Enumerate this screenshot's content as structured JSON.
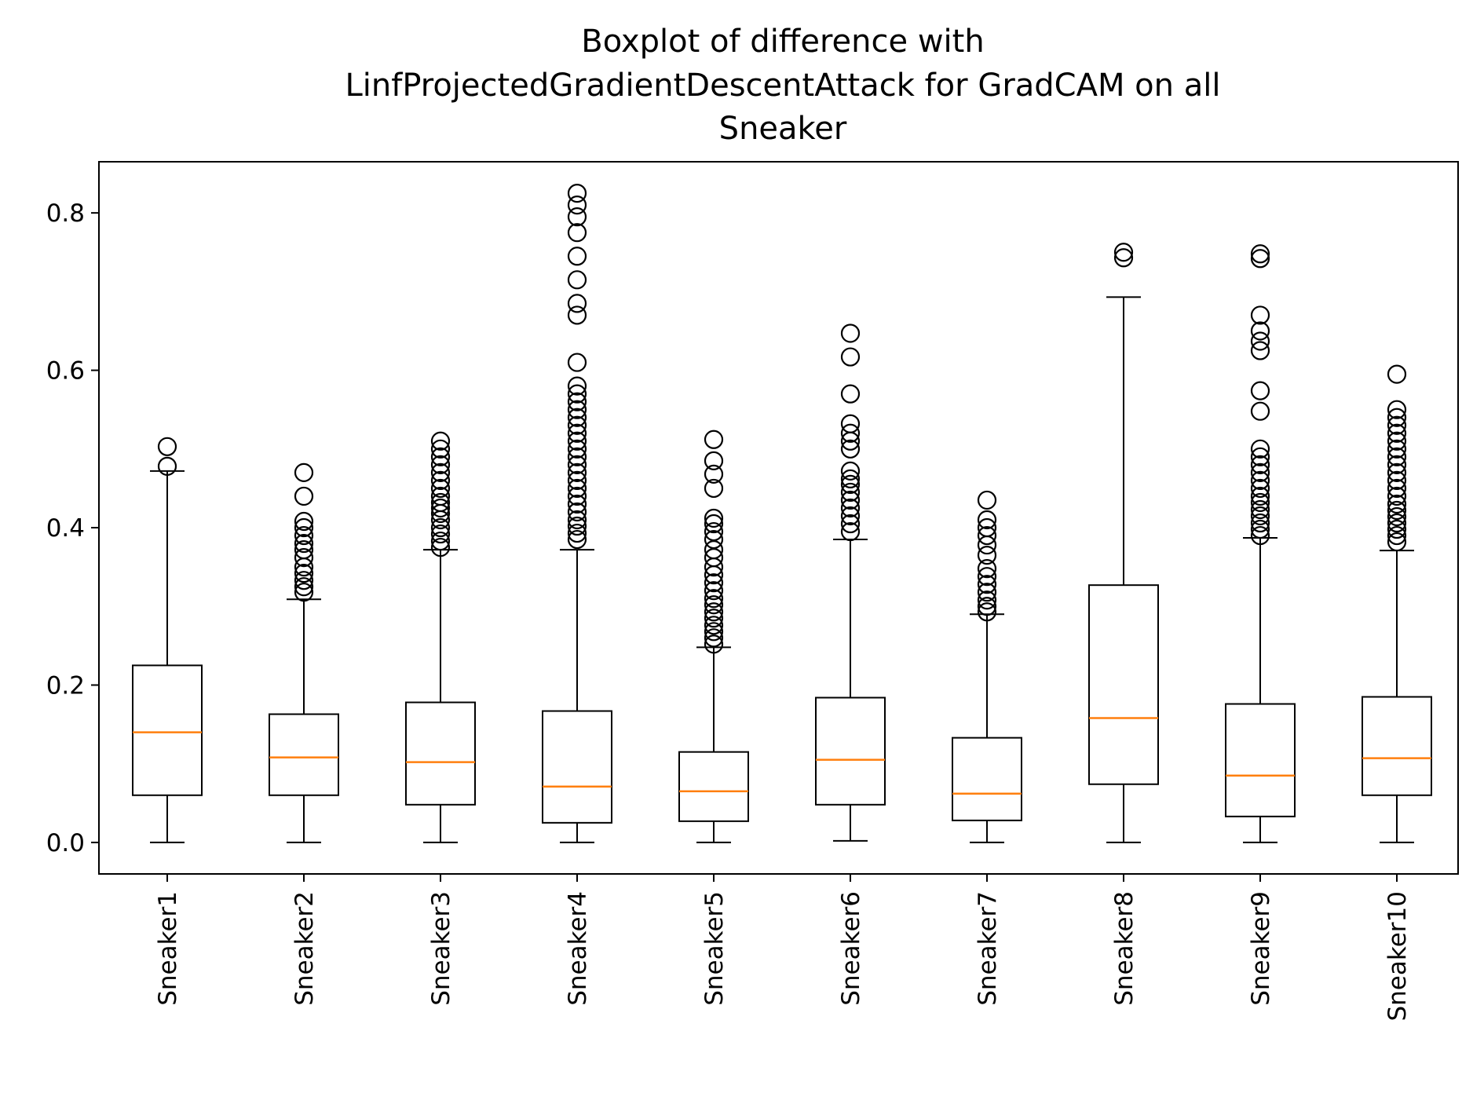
{
  "chart_data": {
    "type": "boxplot",
    "title_lines": [
      "Boxplot of difference with",
      "LinfProjectedGradientDescentAttack for GradCAM on all",
      "Sneaker"
    ],
    "xlabel": "",
    "ylabel": "",
    "ylim": [
      -0.04,
      0.865
    ],
    "yticks": [
      0.0,
      0.2,
      0.4,
      0.6,
      0.8
    ],
    "ytick_labels": [
      "0.0",
      "0.2",
      "0.4",
      "0.6",
      "0.8"
    ],
    "grid": false,
    "colors": {
      "median": "#ff7f0e",
      "box": "#000000",
      "background": "#ffffff"
    },
    "categories": [
      "Sneaker1",
      "Sneaker2",
      "Sneaker3",
      "Sneaker4",
      "Sneaker5",
      "Sneaker6",
      "Sneaker7",
      "Sneaker8",
      "Sneaker9",
      "Sneaker10"
    ],
    "boxes": [
      {
        "whislo": 0.0,
        "q1": 0.06,
        "med": 0.14,
        "q3": 0.225,
        "whishi": 0.472,
        "fliers": [
          0.478,
          0.503
        ]
      },
      {
        "whislo": 0.0,
        "q1": 0.06,
        "med": 0.108,
        "q3": 0.163,
        "whishi": 0.309,
        "fliers": [
          0.318,
          0.325,
          0.333,
          0.342,
          0.35,
          0.362,
          0.372,
          0.38,
          0.39,
          0.4,
          0.408,
          0.44,
          0.47
        ]
      },
      {
        "whislo": 0.0,
        "q1": 0.048,
        "med": 0.102,
        "q3": 0.178,
        "whishi": 0.372,
        "fliers": [
          0.375,
          0.383,
          0.392,
          0.4,
          0.41,
          0.418,
          0.425,
          0.432,
          0.44,
          0.45,
          0.46,
          0.47,
          0.48,
          0.49,
          0.5,
          0.51
        ]
      },
      {
        "whislo": 0.0,
        "q1": 0.025,
        "med": 0.071,
        "q3": 0.167,
        "whishi": 0.372,
        "fliers": [
          0.385,
          0.393,
          0.402,
          0.41,
          0.42,
          0.43,
          0.44,
          0.45,
          0.46,
          0.47,
          0.48,
          0.49,
          0.5,
          0.51,
          0.52,
          0.53,
          0.54,
          0.55,
          0.56,
          0.57,
          0.58,
          0.61,
          0.67,
          0.685,
          0.715,
          0.745,
          0.775,
          0.795,
          0.81,
          0.825
        ]
      },
      {
        "whislo": 0.0,
        "q1": 0.027,
        "med": 0.065,
        "q3": 0.115,
        "whishi": 0.248,
        "fliers": [
          0.252,
          0.26,
          0.268,
          0.276,
          0.285,
          0.293,
          0.302,
          0.31,
          0.32,
          0.33,
          0.34,
          0.35,
          0.362,
          0.372,
          0.385,
          0.395,
          0.405,
          0.412,
          0.45,
          0.468,
          0.485,
          0.512
        ]
      },
      {
        "whislo": 0.002,
        "q1": 0.048,
        "med": 0.105,
        "q3": 0.184,
        "whishi": 0.385,
        "fliers": [
          0.395,
          0.405,
          0.415,
          0.425,
          0.435,
          0.445,
          0.455,
          0.462,
          0.472,
          0.5,
          0.51,
          0.52,
          0.532,
          0.57,
          0.617,
          0.647
        ]
      },
      {
        "whislo": 0.0,
        "q1": 0.028,
        "med": 0.062,
        "q3": 0.133,
        "whishi": 0.29,
        "fliers": [
          0.293,
          0.3,
          0.308,
          0.318,
          0.328,
          0.338,
          0.348,
          0.365,
          0.378,
          0.39,
          0.4,
          0.41,
          0.435
        ]
      },
      {
        "whislo": 0.0,
        "q1": 0.074,
        "med": 0.158,
        "q3": 0.327,
        "whishi": 0.693,
        "fliers": [
          0.743,
          0.75
        ]
      },
      {
        "whislo": 0.0,
        "q1": 0.033,
        "med": 0.085,
        "q3": 0.176,
        "whishi": 0.387,
        "fliers": [
          0.39,
          0.398,
          0.406,
          0.415,
          0.423,
          0.432,
          0.44,
          0.45,
          0.46,
          0.47,
          0.48,
          0.49,
          0.5,
          0.548,
          0.574,
          0.625,
          0.637,
          0.65,
          0.67,
          0.742,
          0.748
        ]
      },
      {
        "whislo": 0.0,
        "q1": 0.06,
        "med": 0.107,
        "q3": 0.185,
        "whishi": 0.371,
        "fliers": [
          0.382,
          0.39,
          0.398,
          0.406,
          0.414,
          0.422,
          0.43,
          0.44,
          0.45,
          0.46,
          0.47,
          0.48,
          0.49,
          0.5,
          0.51,
          0.52,
          0.53,
          0.54,
          0.55,
          0.595
        ]
      }
    ]
  }
}
